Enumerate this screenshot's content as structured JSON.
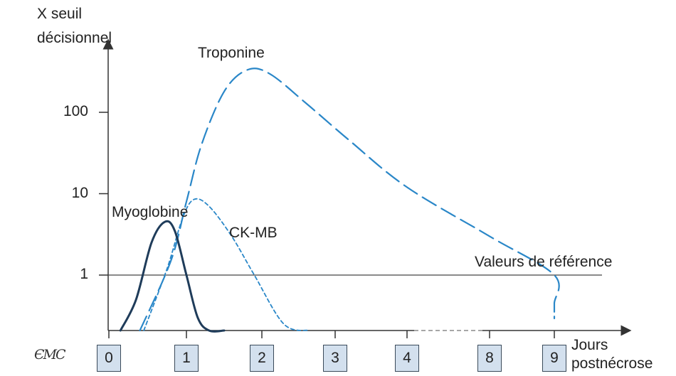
{
  "chart_data": {
    "type": "line",
    "y_scale": "log",
    "ylabel": [
      "X seuil",
      "décisionnel"
    ],
    "xlabel": [
      "Jours",
      "postnécrose"
    ],
    "y_ticks": [
      "100",
      "10",
      "1"
    ],
    "x_categories": [
      "0",
      "1",
      "2",
      "3",
      "4",
      "8",
      "9"
    ],
    "reference_line": {
      "label": "Valeurs de référence",
      "value": 1
    },
    "series": [
      {
        "name": "Troponine",
        "style": "long-dash",
        "color": "#2a87c8",
        "points": [
          [
            0.4,
            0.1
          ],
          [
            0.8,
            1.5
          ],
          [
            1.0,
            8
          ],
          [
            1.2,
            40
          ],
          [
            1.5,
            180
          ],
          [
            1.8,
            330
          ],
          [
            2.1,
            300
          ],
          [
            2.6,
            130
          ],
          [
            3.2,
            45
          ],
          [
            4.0,
            12
          ],
          [
            5.0,
            3
          ],
          [
            6.0,
            1
          ],
          [
            6.6,
            0.45
          ],
          [
            7.0,
            0.3
          ],
          [
            7.6,
            0.31
          ]
        ]
      },
      {
        "name": "CK-MB",
        "style": "short-dash",
        "color": "#2a87c8",
        "points": [
          [
            0.45,
            0.1
          ],
          [
            0.75,
            1.2
          ],
          [
            0.95,
            5
          ],
          [
            1.1,
            8.5
          ],
          [
            1.3,
            7
          ],
          [
            1.6,
            3
          ],
          [
            1.9,
            1
          ],
          [
            2.3,
            0.25
          ],
          [
            2.65,
            0.1
          ]
        ]
      },
      {
        "name": "Myoglobine",
        "style": "solid",
        "color": "#1f3c5a",
        "points": [
          [
            0.15,
            0.1
          ],
          [
            0.35,
            0.5
          ],
          [
            0.55,
            2.5
          ],
          [
            0.72,
            4.5
          ],
          [
            0.85,
            3.5
          ],
          [
            1.0,
            1
          ],
          [
            1.15,
            0.3
          ],
          [
            1.3,
            0.15
          ],
          [
            1.5,
            0.1
          ]
        ]
      }
    ],
    "annotations": {
      "troponine": "Troponine",
      "myoglobine": "Myoglobine",
      "ckmb": "CK-MB"
    },
    "axis_break_between": [
      "4",
      "8"
    ]
  },
  "logo": "ЄМС"
}
